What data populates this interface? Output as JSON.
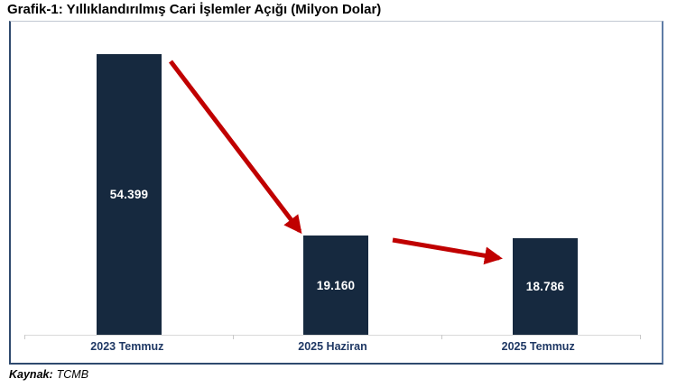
{
  "page": {
    "title": "Grafik-1: Yıllıklandırılmış Cari İşlemler Açığı (Milyon Dolar)"
  },
  "source": {
    "label": "Kaynak:",
    "value": "TCMB"
  },
  "chart_data": {
    "type": "bar",
    "title": "Grafik-1: Yıllıklandırılmış Cari İşlemler Açığı (Milyon Dolar)",
    "categories": [
      "2023 Temmuz",
      "2025 Haziran",
      "2025 Temmuz"
    ],
    "values": [
      54399,
      19160,
      18786
    ],
    "value_labels": [
      "54.399",
      "19.160",
      "18.786"
    ],
    "xlabel": "",
    "ylabel": "",
    "ylim": [
      0,
      58000
    ],
    "grid": false,
    "legend": false,
    "value_labels_position": "inside-center",
    "bar_color": "#16293F",
    "value_label_color": "#FFFFFF",
    "category_label_color": "#1F3864",
    "axis_line_color": "#D9D9D9",
    "arrow_color": "#C00000",
    "annotations": [
      {
        "type": "arrow",
        "from_category": "2023 Temmuz",
        "to_category": "2025 Haziran",
        "meaning": "sharp decline"
      },
      {
        "type": "arrow",
        "from_category": "2025 Haziran",
        "to_category": "2025 Temmuz",
        "meaning": "slight decline"
      }
    ]
  }
}
